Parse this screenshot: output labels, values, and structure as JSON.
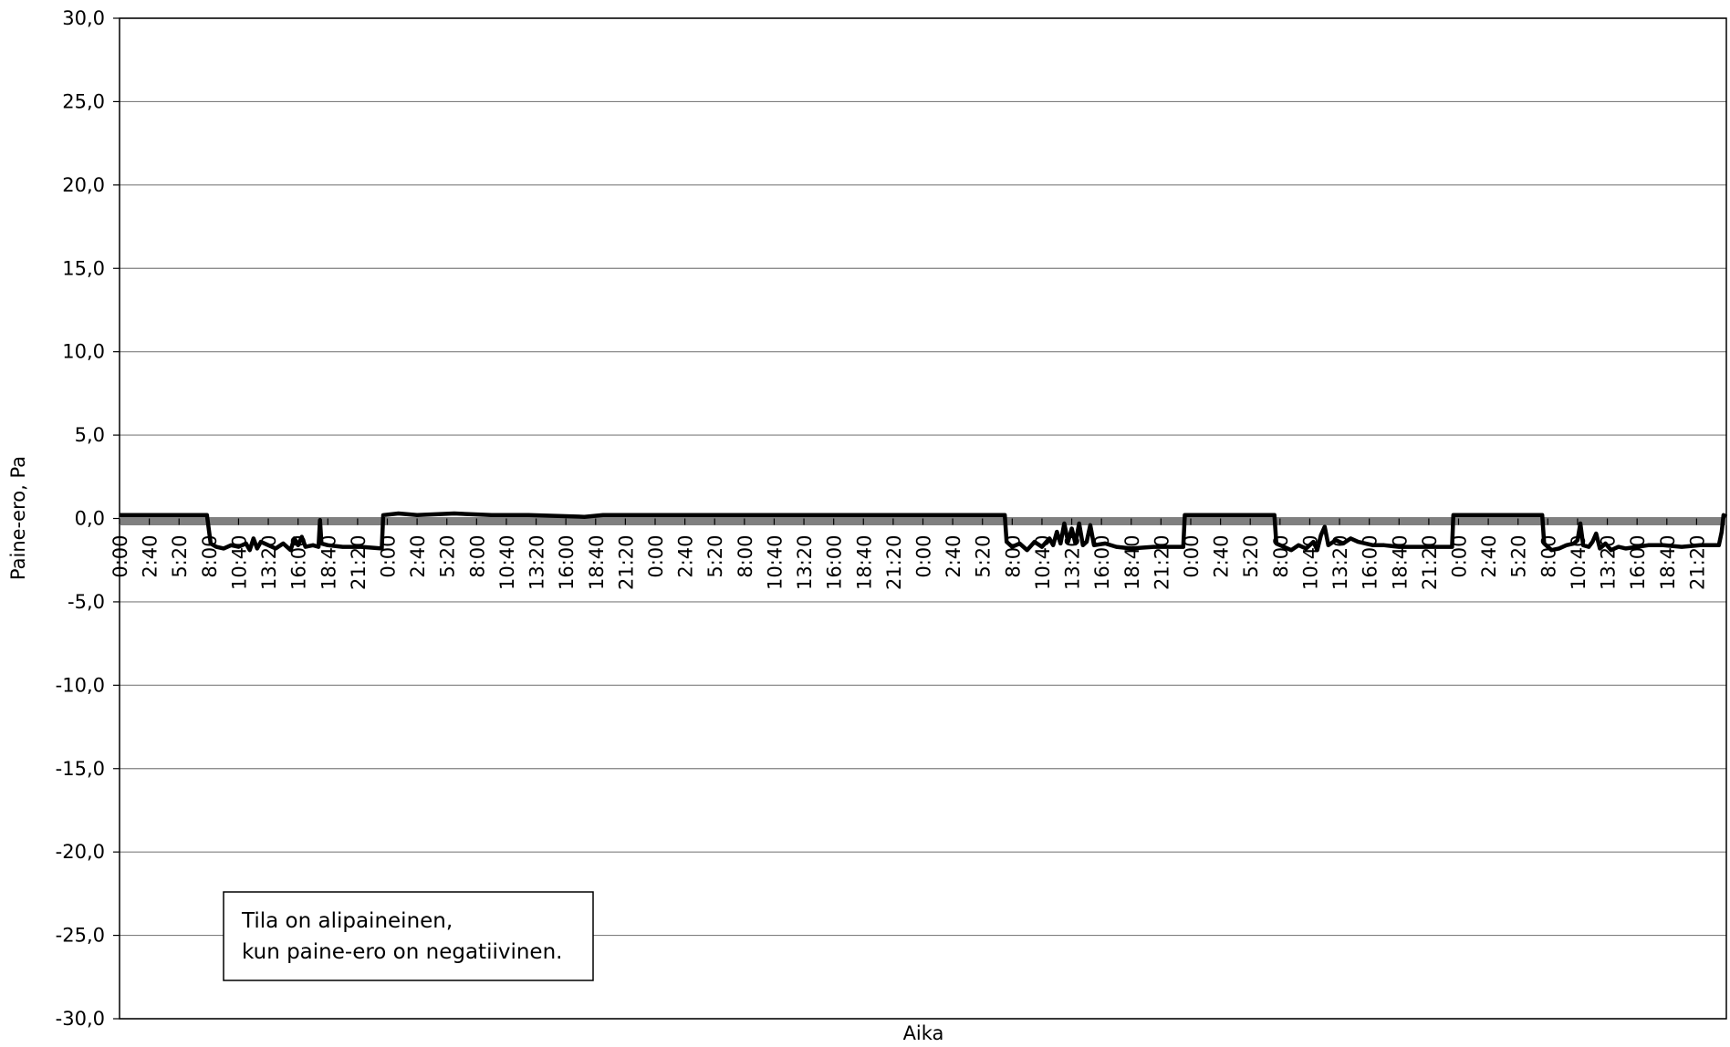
{
  "chart_data": {
    "type": "line",
    "ylabel": "Paine-ero, Pa",
    "xlabel": "Aika",
    "annotation": [
      "Tila on alipaineinen,",
      "kun paine-ero on negatiivinen."
    ],
    "color": "#000000",
    "zero_line_color": "#808080",
    "grid": true,
    "ylim": [
      -30,
      30
    ],
    "yticks": [
      {
        "value": 30,
        "label": "30,0"
      },
      {
        "value": 25,
        "label": "25,0"
      },
      {
        "value": 20,
        "label": "20,0"
      },
      {
        "value": 15,
        "label": "15,0"
      },
      {
        "value": 10,
        "label": "10,0"
      },
      {
        "value": 5,
        "label": "5,0"
      },
      {
        "value": 0,
        "label": "0,0"
      },
      {
        "value": -5,
        "label": "-5,0"
      },
      {
        "value": -10,
        "label": "-10,0"
      },
      {
        "value": -15,
        "label": "-15,0"
      },
      {
        "value": -20,
        "label": "-20,0"
      },
      {
        "value": -25,
        "label": "-25,0"
      },
      {
        "value": -30,
        "label": "-30,0"
      }
    ],
    "xlim": [
      0,
      8640
    ],
    "xticks": [
      {
        "value": 0,
        "label": "0:00"
      },
      {
        "value": 160,
        "label": "2:40"
      },
      {
        "value": 320,
        "label": "5:20"
      },
      {
        "value": 480,
        "label": "8:00"
      },
      {
        "value": 640,
        "label": "10:40"
      },
      {
        "value": 800,
        "label": "13:20"
      },
      {
        "value": 960,
        "label": "16:00"
      },
      {
        "value": 1120,
        "label": "18:40"
      },
      {
        "value": 1280,
        "label": "21:20"
      },
      {
        "value": 1440,
        "label": "0:00"
      },
      {
        "value": 1600,
        "label": "2:40"
      },
      {
        "value": 1760,
        "label": "5:20"
      },
      {
        "value": 1920,
        "label": "8:00"
      },
      {
        "value": 2080,
        "label": "10:40"
      },
      {
        "value": 2240,
        "label": "13:20"
      },
      {
        "value": 2400,
        "label": "16:00"
      },
      {
        "value": 2560,
        "label": "18:40"
      },
      {
        "value": 2720,
        "label": "21:20"
      },
      {
        "value": 2880,
        "label": "0:00"
      },
      {
        "value": 3040,
        "label": "2:40"
      },
      {
        "value": 3200,
        "label": "5:20"
      },
      {
        "value": 3360,
        "label": "8:00"
      },
      {
        "value": 3520,
        "label": "10:40"
      },
      {
        "value": 3680,
        "label": "13:20"
      },
      {
        "value": 3840,
        "label": "16:00"
      },
      {
        "value": 4000,
        "label": "18:40"
      },
      {
        "value": 4160,
        "label": "21:20"
      },
      {
        "value": 4320,
        "label": "0:00"
      },
      {
        "value": 4480,
        "label": "2:40"
      },
      {
        "value": 4640,
        "label": "5:20"
      },
      {
        "value": 4800,
        "label": "8:00"
      },
      {
        "value": 4960,
        "label": "10:40"
      },
      {
        "value": 5120,
        "label": "13:20"
      },
      {
        "value": 5280,
        "label": "16:00"
      },
      {
        "value": 5440,
        "label": "18:40"
      },
      {
        "value": 5600,
        "label": "21:20"
      },
      {
        "value": 5760,
        "label": "0:00"
      },
      {
        "value": 5920,
        "label": "2:40"
      },
      {
        "value": 6080,
        "label": "5:20"
      },
      {
        "value": 6240,
        "label": "8:00"
      },
      {
        "value": 6400,
        "label": "10:40"
      },
      {
        "value": 6560,
        "label": "13:20"
      },
      {
        "value": 6720,
        "label": "16:00"
      },
      {
        "value": 6880,
        "label": "18:40"
      },
      {
        "value": 7040,
        "label": "21:20"
      },
      {
        "value": 7200,
        "label": "0:00"
      },
      {
        "value": 7360,
        "label": "2:40"
      },
      {
        "value": 7520,
        "label": "5:20"
      },
      {
        "value": 7680,
        "label": "8:00"
      },
      {
        "value": 7840,
        "label": "10:40"
      },
      {
        "value": 8000,
        "label": "13:20"
      },
      {
        "value": 8160,
        "label": "16:00"
      },
      {
        "value": 8320,
        "label": "18:40"
      },
      {
        "value": 8480,
        "label": "21:20"
      }
    ],
    "x": [
      0,
      470,
      490,
      520,
      560,
      600,
      640,
      680,
      700,
      720,
      740,
      760,
      800,
      840,
      880,
      920,
      940,
      960,
      980,
      1000,
      1040,
      1070,
      1078,
      1086,
      1120,
      1200,
      1300,
      1410,
      1418,
      1500,
      1600,
      1800,
      2000,
      2200,
      2500,
      2600,
      3000,
      3500,
      4000,
      4500,
      4760,
      4770,
      4800,
      4840,
      4880,
      4920,
      4960,
      5000,
      5020,
      5040,
      5060,
      5080,
      5100,
      5120,
      5140,
      5160,
      5180,
      5200,
      5220,
      5240,
      5300,
      5360,
      5440,
      5560,
      5720,
      5728,
      6000,
      6210,
      6220,
      6260,
      6300,
      6340,
      6380,
      6420,
      6440,
      6460,
      6480,
      6500,
      6540,
      6580,
      6620,
      6660,
      6700,
      6740,
      6800,
      6880,
      6980,
      7100,
      7165,
      7172,
      7400,
      7650,
      7660,
      7700,
      7740,
      7780,
      7820,
      7840,
      7855,
      7870,
      7900,
      7920,
      7940,
      7960,
      7990,
      8020,
      8060,
      8100,
      8160,
      8220,
      8300,
      8400,
      8500,
      8600,
      8615,
      8625,
      8640
    ],
    "values": [
      0.2,
      0.2,
      -1.5,
      -1.7,
      -1.8,
      -1.6,
      -1.7,
      -1.5,
      -1.9,
      -1.2,
      -1.8,
      -1.4,
      -1.6,
      -1.8,
      -1.5,
      -1.9,
      -1.2,
      -1.6,
      -1.1,
      -1.7,
      -1.6,
      -1.7,
      -0.1,
      -1.5,
      -1.6,
      -1.7,
      -1.7,
      -1.8,
      0.2,
      0.3,
      0.2,
      0.3,
      0.2,
      0.2,
      0.1,
      0.2,
      0.2,
      0.2,
      0.2,
      0.2,
      0.2,
      -1.4,
      -1.7,
      -1.5,
      -1.9,
      -1.4,
      -1.7,
      -1.2,
      -1.6,
      -0.8,
      -1.5,
      -0.3,
      -1.4,
      -0.6,
      -1.5,
      -0.3,
      -1.6,
      -1.4,
      -0.4,
      -1.6,
      -1.5,
      -1.7,
      -1.8,
      -1.7,
      -1.7,
      0.2,
      0.2,
      0.2,
      -1.5,
      -1.7,
      -1.9,
      -1.6,
      -1.8,
      -1.4,
      -1.9,
      -1.0,
      -0.5,
      -1.6,
      -1.3,
      -1.5,
      -1.2,
      -1.4,
      -1.5,
      -1.6,
      -1.6,
      -1.7,
      -1.7,
      -1.7,
      -1.7,
      0.2,
      0.2,
      0.2,
      -1.5,
      -1.9,
      -1.8,
      -1.6,
      -1.5,
      -1.3,
      -0.3,
      -1.6,
      -1.7,
      -1.4,
      -0.9,
      -1.8,
      -1.5,
      -1.9,
      -1.7,
      -1.8,
      -1.7,
      -1.6,
      -1.6,
      -1.7,
      -1.6,
      -1.6,
      -0.8,
      0.2,
      0.1
    ]
  }
}
